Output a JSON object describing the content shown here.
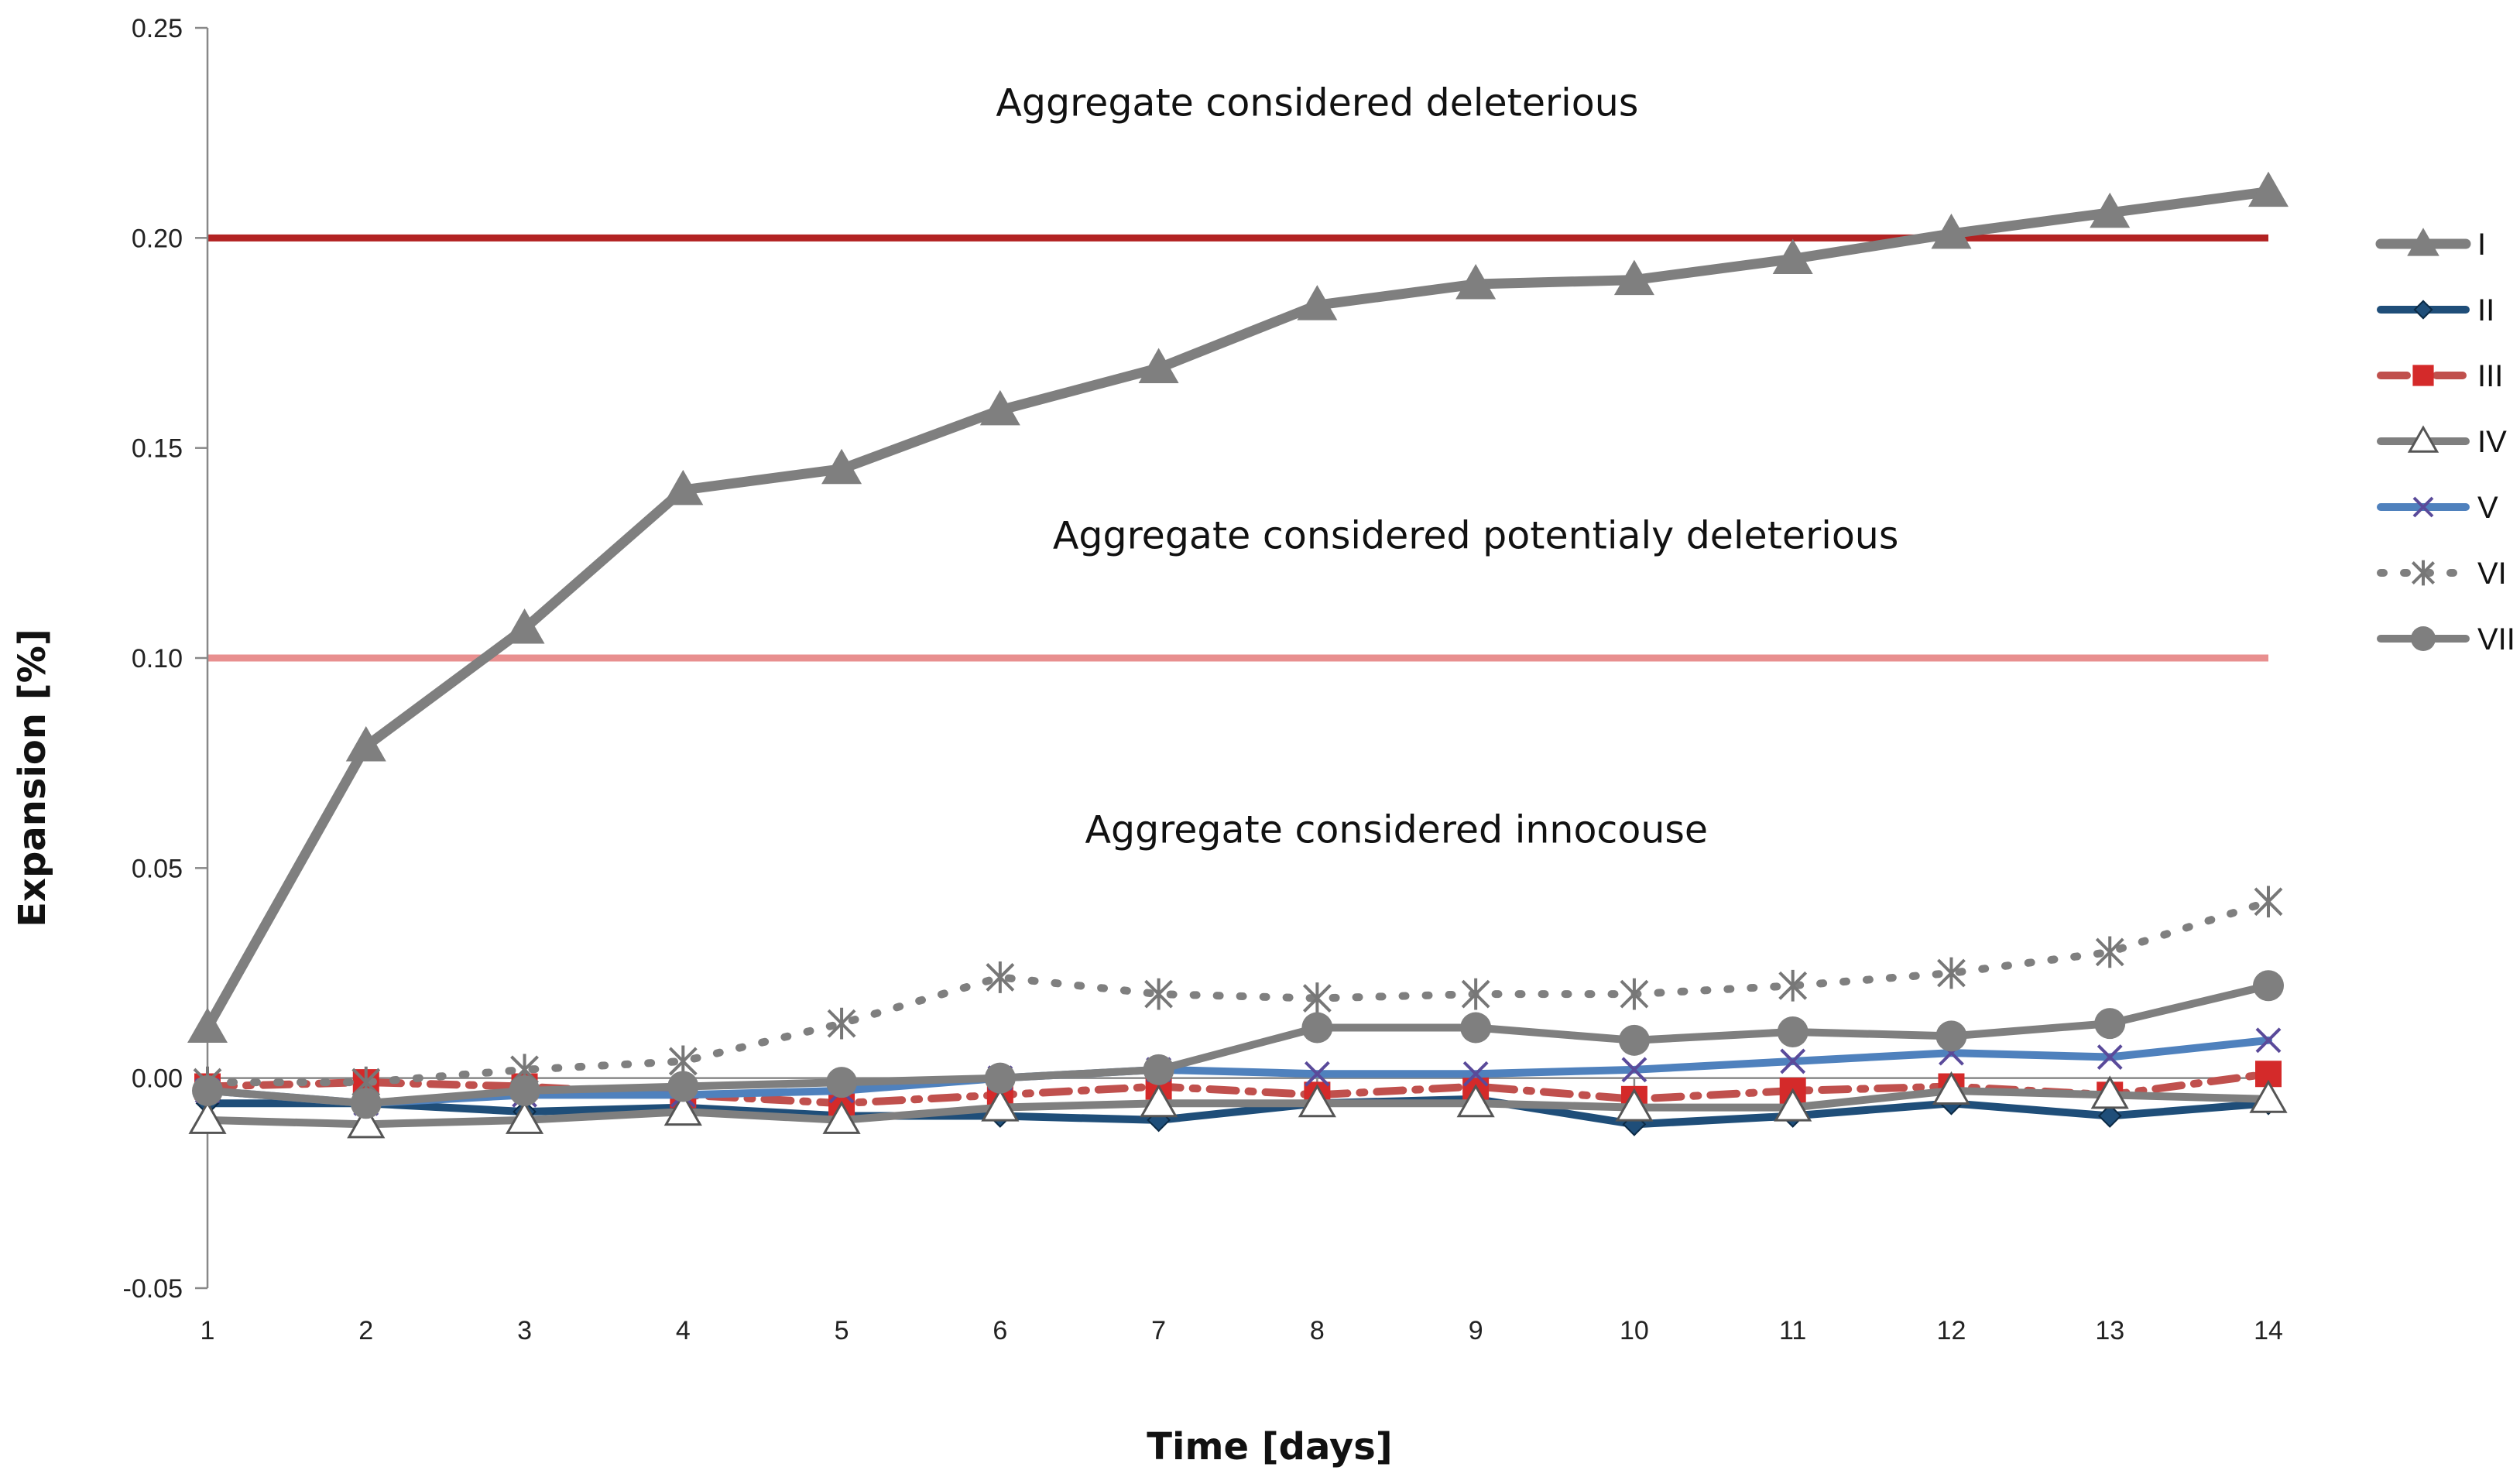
{
  "chart_data": {
    "type": "line",
    "title": "",
    "xlabel": "Time [days]",
    "ylabel": "Expansion [%]",
    "x": [
      1,
      2,
      3,
      4,
      5,
      6,
      7,
      8,
      9,
      10,
      11,
      12,
      13,
      14
    ],
    "x_tick_labels": [
      "1",
      "2",
      "3",
      "4",
      "5",
      "6",
      "7",
      "8",
      "9",
      "10",
      "11",
      "12",
      "13",
      "14"
    ],
    "ylim": [
      -0.05,
      0.25
    ],
    "y_ticks": [
      -0.05,
      0.0,
      0.05,
      0.1,
      0.15,
      0.2,
      0.25
    ],
    "y_tick_labels": [
      "-0.05",
      "0.00",
      "0.05",
      "0.10",
      "0.15",
      "0.20",
      "0.25"
    ],
    "grid": false,
    "legend_position": "right",
    "thresholds": [
      {
        "value": 0.2,
        "color": "#b22222"
      },
      {
        "value": 0.1,
        "color": "#e88f8f"
      }
    ],
    "annotations": [
      {
        "text": "Aggregate considered deleterious",
        "x": 8,
        "y": 0.232
      },
      {
        "text": "Aggregate considered potentialy deleterious",
        "x": 9,
        "y": 0.129
      },
      {
        "text": "Aggregate considered innocouse",
        "x": 8.5,
        "y": 0.059
      }
    ],
    "series": [
      {
        "name": "II",
        "color": "#1f4e79",
        "marker": "diamond",
        "dash": "solid",
        "values": [
          -0.006,
          -0.006,
          -0.008,
          -0.007,
          -0.009,
          -0.009,
          -0.01,
          -0.006,
          -0.005,
          -0.011,
          -0.009,
          -0.006,
          -0.009,
          -0.006
        ]
      },
      {
        "name": "III",
        "color": "#c0504d",
        "marker": "square",
        "dash": "dashdot",
        "values": [
          -0.002,
          -0.001,
          -0.002,
          -0.004,
          -0.006,
          -0.004,
          -0.002,
          -0.004,
          -0.002,
          -0.005,
          -0.003,
          -0.002,
          -0.004,
          0.001
        ]
      },
      {
        "name": "IV",
        "color": "#7f7f7f",
        "marker": "triangle-open",
        "dash": "solid",
        "values": [
          -0.01,
          -0.011,
          -0.01,
          -0.008,
          -0.01,
          -0.007,
          -0.006,
          -0.006,
          -0.006,
          -0.007,
          -0.007,
          -0.003,
          -0.004,
          -0.005
        ]
      },
      {
        "name": "V",
        "color": "#4f81bd",
        "marker": "x",
        "dash": "solid",
        "values": [
          -0.003,
          -0.006,
          -0.004,
          -0.004,
          -0.003,
          0.0,
          0.002,
          0.001,
          0.001,
          0.002,
          0.004,
          0.006,
          0.005,
          0.009
        ]
      },
      {
        "name": "VI",
        "color": "#7f7f7f",
        "marker": "star",
        "dash": "dotted",
        "values": [
          -0.001,
          -0.001,
          0.002,
          0.004,
          0.013,
          0.024,
          0.02,
          0.019,
          0.02,
          0.02,
          0.022,
          0.025,
          0.03,
          0.042
        ]
      },
      {
        "name": "VII",
        "color": "#7f7f7f",
        "marker": "circle",
        "dash": "solid",
        "values": [
          -0.003,
          -0.006,
          -0.003,
          -0.002,
          -0.001,
          0.0,
          0.002,
          0.012,
          0.012,
          0.009,
          0.011,
          0.01,
          0.013,
          0.022
        ]
      },
      {
        "name": "I",
        "color": "#7f7f7f",
        "marker": "triangle",
        "dash": "solid",
        "values": [
          0.012,
          0.079,
          0.107,
          0.14,
          0.145,
          0.159,
          0.169,
          0.184,
          0.189,
          0.19,
          0.195,
          0.201,
          0.206,
          0.211
        ]
      }
    ],
    "legend_order": [
      "I",
      "II",
      "III",
      "IV",
      "V",
      "VI",
      "VII"
    ]
  }
}
